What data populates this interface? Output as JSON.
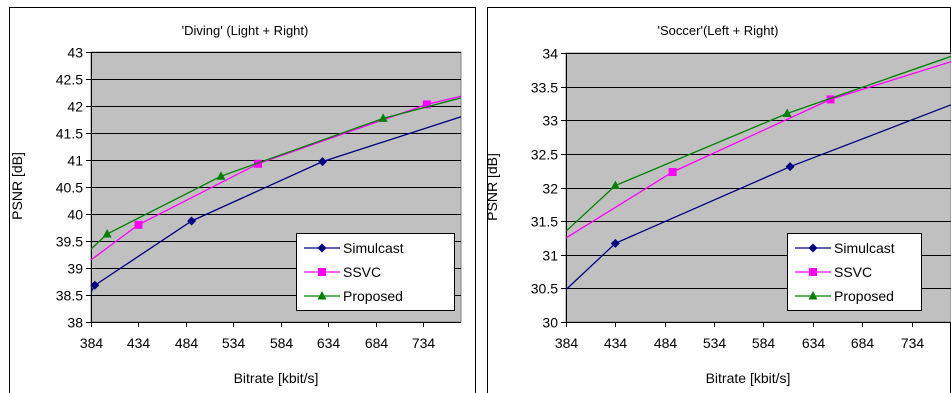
{
  "chart_data": [
    {
      "type": "line",
      "title": "'Diving' (Light + Right)",
      "xlabel": "Bitrate [kbit/s]",
      "ylabel": "PSNR [dB]",
      "xlim": [
        384,
        774
      ],
      "ylim": [
        38,
        43
      ],
      "xticks": [
        384,
        434,
        484,
        534,
        584,
        634,
        684,
        734
      ],
      "yticks": [
        38,
        38.5,
        39,
        39.5,
        40,
        40.5,
        41,
        41.5,
        42,
        42.5,
        43
      ],
      "ytick_labels": [
        "38",
        "38.5",
        "39",
        "39.5",
        "40",
        "40.5",
        "41",
        "41.5",
        "42",
        "42.5",
        "43"
      ],
      "grid": true,
      "plot_background": "#c0c0c0",
      "legend_position": "bottom-right",
      "series": [
        {
          "name": "Simulcast",
          "color": "#000080",
          "marker": "diamond",
          "points": [
            [
              384,
              38.55
            ],
            [
              388,
              38.68
            ],
            [
              490,
              39.87
            ],
            [
              628,
              40.97
            ],
            [
              774,
              41.8
            ]
          ],
          "markers": [
            [
              388,
              38.68
            ],
            [
              490,
              39.87
            ],
            [
              628,
              40.97
            ]
          ]
        },
        {
          "name": "SSVC",
          "color": "#ff00ff",
          "marker": "square",
          "points": [
            [
              384,
              39.15
            ],
            [
              434,
              39.8
            ],
            [
              560,
              40.93
            ],
            [
              738,
              42.03
            ],
            [
              774,
              42.18
            ]
          ],
          "markers": [
            [
              434,
              39.8
            ],
            [
              560,
              40.93
            ],
            [
              738,
              42.03
            ]
          ]
        },
        {
          "name": "Proposed",
          "color": "#008000",
          "marker": "triangle",
          "points": [
            [
              384,
              39.35
            ],
            [
              401,
              39.63
            ],
            [
              521,
              40.7
            ],
            [
              692,
              41.77
            ],
            [
              774,
              42.15
            ]
          ],
          "markers": [
            [
              401,
              39.63
            ],
            [
              521,
              40.7
            ],
            [
              692,
              41.77
            ]
          ]
        }
      ]
    },
    {
      "type": "line",
      "title": "'Soccer'(Left + Right)",
      "xlabel": "Bitrate [kbit/s]",
      "ylabel": "PSNR [dB]",
      "xlim": [
        384,
        774
      ],
      "ylim": [
        30,
        34
      ],
      "xticks": [
        384,
        434,
        484,
        534,
        584,
        634,
        684,
        734
      ],
      "yticks": [
        30,
        30.5,
        31,
        31.5,
        32,
        32.5,
        33,
        33.5,
        34
      ],
      "ytick_labels": [
        "30",
        "30.5",
        "31",
        "31.5",
        "32",
        "32.5",
        "33",
        "33.5",
        "34"
      ],
      "grid": true,
      "plot_background": "#c0c0c0",
      "legend_position": "bottom-right",
      "series": [
        {
          "name": "Simulcast",
          "color": "#000080",
          "marker": "diamond",
          "points": [
            [
              384,
              30.48
            ],
            [
              434,
              31.17
            ],
            [
              611,
              32.31
            ],
            [
              774,
              33.23
            ]
          ],
          "markers": [
            [
              434,
              31.17
            ],
            [
              611,
              32.31
            ]
          ]
        },
        {
          "name": "SSVC",
          "color": "#ff00ff",
          "marker": "square",
          "points": [
            [
              384,
              31.25
            ],
            [
              492,
              32.23
            ],
            [
              652,
              33.31
            ],
            [
              774,
              33.87
            ]
          ],
          "markers": [
            [
              492,
              32.23
            ],
            [
              652,
              33.31
            ]
          ]
        },
        {
          "name": "Proposed",
          "color": "#008000",
          "marker": "triangle",
          "points": [
            [
              384,
              31.35
            ],
            [
              434,
              32.03
            ],
            [
              608,
              33.1
            ],
            [
              774,
              33.95
            ]
          ],
          "markers": [
            [
              434,
              32.03
            ],
            [
              608,
              33.1
            ]
          ]
        }
      ]
    }
  ]
}
